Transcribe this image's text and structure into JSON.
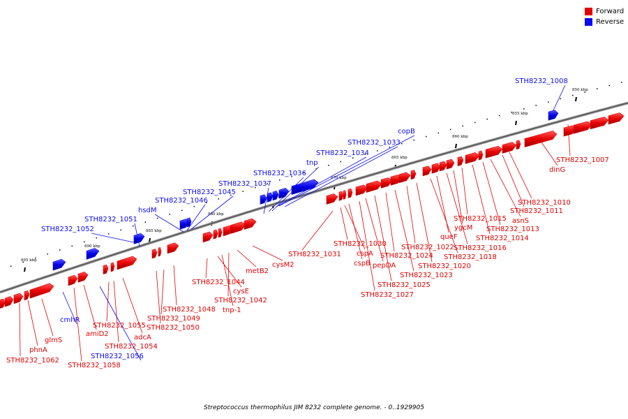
{
  "legend": {
    "forward_label": "Forward",
    "forward_color": "#e30000",
    "reverse_label": "Reverse",
    "reverse_color": "#0b0bf2"
  },
  "caption": "Streptococcus thermophilus JIM 8232 complete genome. - 0..1929905",
  "scale_labels": [
    "850 kbp",
    "855 kbp",
    "860 kbp",
    "865 kbp",
    "870 kbp",
    "875 kbp",
    "880 kbp",
    "885 kbp",
    "890 kbp",
    "895 kbp"
  ],
  "genes_forward": [
    "dinG",
    "STH8232_1007",
    "STH8232_1010",
    "STH8232_1011",
    "asnS",
    "STH8232_1013",
    "STH8232_1014",
    "STH8232_1015",
    "ygcM",
    "STH8232_1016",
    "queF",
    "STH8232_1018",
    "STH8232_1020",
    "STH8232_1022",
    "STH8232_1023",
    "STH8232_1024",
    "STH8232_1025",
    "pepDA",
    "STH8232_1027",
    "cspB",
    "cspA",
    "STH8232_1030",
    "STH8232_1031",
    "cysM2",
    "metB2",
    "STH8232_1042",
    "tnp-1",
    "cysE",
    "STH8232_1044",
    "STH8232_1048",
    "STH8232_1049",
    "STH8232_1050",
    "adcA",
    "STH8232_1054",
    "STH8232_1055",
    "amiD2",
    "STH8232_1058",
    "glmS",
    "phnA",
    "STH8232_1062"
  ],
  "genes_reverse": [
    "STH8232_1008",
    "copB",
    "STH8232_1033",
    "STH8232_1034",
    "tnp",
    "STH8232_1036",
    "STH8232_1037",
    "STH8232_1045",
    "STH8232_1046",
    "hsdM",
    "STH8232_1051",
    "STH8232_1052",
    "cmhR",
    "STH8232_1056"
  ]
}
